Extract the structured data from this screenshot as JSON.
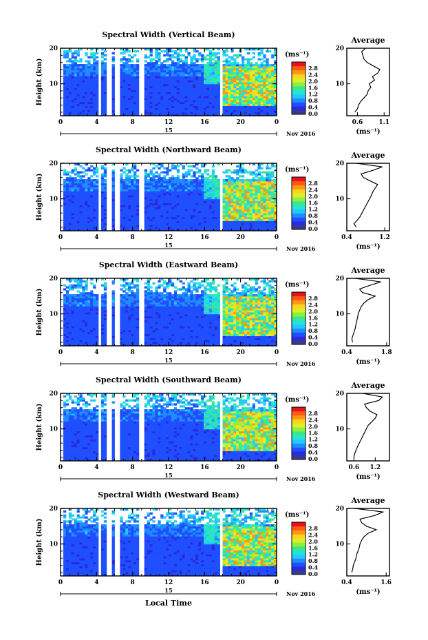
{
  "figure": {
    "xlabel": "Local Time",
    "date_label": "Nov 2016",
    "day_label": "15",
    "colorbar_unit": "(ms⁻¹)",
    "avg_title": "Average",
    "avg_xlabel": "(ms⁻¹)",
    "ylabel": "Height (km)",
    "colors": [
      "#3a3a8a",
      "#2a2ad8",
      "#1f4fff",
      "#1f8cff",
      "#22c8ff",
      "#22e6d2",
      "#3ce68c",
      "#8cf03c",
      "#dcf028",
      "#ffd21e",
      "#ff9616",
      "#ff5a10",
      "#e6141e"
    ]
  },
  "chart_data": [
    {
      "type": "heatmap",
      "title": "Spectral Width (Vertical Beam)",
      "xlabel": "Local Time",
      "ylabel": "Height (km)",
      "x_ticks": [
        "0",
        "4",
        "8",
        "12",
        "16",
        "20",
        "0"
      ],
      "y_ticks": [
        "20",
        "10"
      ],
      "xlim": [
        0,
        24
      ],
      "ylim": [
        1,
        20
      ],
      "colorbar": {
        "label": "(ms⁻¹)",
        "ticks": [
          "2.8",
          "2.4",
          "2.0",
          "1.6",
          "1.2",
          "0.8",
          "0.4",
          "0.0"
        ],
        "range": [
          0,
          3.0
        ]
      },
      "data_gaps_hours": [
        [
          4.1,
          4.5
        ],
        [
          5.2,
          5.6
        ],
        [
          6.1,
          6.5
        ],
        [
          8.8,
          9.2
        ],
        [
          17.6,
          18.1
        ]
      ],
      "average": {
        "title": "Average",
        "xlabel": "(ms⁻¹)",
        "x_ticks": [
          "0.6",
          "1.1"
        ],
        "xlim": [
          0.4,
          1.2
        ],
        "y_ticks": [
          "20",
          "10"
        ],
        "height": [
          2,
          3,
          4,
          5,
          6,
          7,
          8,
          9,
          10,
          11,
          12,
          13,
          14,
          15,
          16,
          17,
          18,
          19,
          20
        ],
        "value": [
          0.55,
          0.6,
          0.62,
          0.66,
          0.72,
          0.78,
          0.8,
          0.85,
          0.82,
          0.92,
          0.88,
          0.98,
          1.02,
          0.9,
          0.78,
          0.72,
          0.7,
          0.68,
          0.75
        ]
      }
    },
    {
      "type": "heatmap",
      "title": "Spectral Width (Northward Beam)",
      "xlabel": "Local Time",
      "ylabel": "Height (km)",
      "x_ticks": [
        "0",
        "4",
        "8",
        "12",
        "16",
        "20",
        "0"
      ],
      "y_ticks": [
        "20",
        "10"
      ],
      "xlim": [
        0,
        24
      ],
      "ylim": [
        1,
        20
      ],
      "colorbar": {
        "label": "(ms⁻¹)",
        "ticks": [
          "2.8",
          "2.4",
          "2.0",
          "1.6",
          "1.2",
          "0.8",
          "0.4",
          "0.0"
        ],
        "range": [
          0,
          3.0
        ]
      },
      "data_gaps_hours": [
        [
          4.1,
          4.5
        ],
        [
          5.2,
          5.6
        ],
        [
          6.1,
          6.5
        ],
        [
          8.8,
          9.2
        ],
        [
          17.6,
          18.1
        ]
      ],
      "average": {
        "title": "Average",
        "xlabel": "(ms⁻¹)",
        "x_ticks": [
          "0.4",
          "1.2"
        ],
        "xlim": [
          0.4,
          1.3
        ],
        "y_ticks": [
          "20",
          "10"
        ],
        "height": [
          2,
          3,
          4,
          5,
          6,
          7,
          8,
          9,
          10,
          11,
          12,
          13,
          14,
          15,
          16,
          17,
          18,
          19,
          20
        ],
        "value": [
          0.6,
          0.55,
          0.62,
          0.68,
          0.72,
          0.76,
          0.8,
          0.84,
          0.88,
          0.92,
          0.95,
          1.0,
          1.05,
          0.9,
          0.75,
          0.7,
          0.95,
          1.15,
          0.6
        ]
      }
    },
    {
      "type": "heatmap",
      "title": "Spectral Width (Eastward Beam)",
      "xlabel": "Local Time",
      "ylabel": "Height (km)",
      "x_ticks": [
        "0",
        "4",
        "8",
        "12",
        "16",
        "20",
        "0"
      ],
      "y_ticks": [
        "20",
        "10"
      ],
      "xlim": [
        0,
        24
      ],
      "ylim": [
        1,
        20
      ],
      "colorbar": {
        "label": "(ms⁻¹)",
        "ticks": [
          "2.8",
          "2.4",
          "2.0",
          "1.6",
          "1.2",
          "0.8",
          "0.4",
          "0.0"
        ],
        "range": [
          0,
          3.0
        ]
      },
      "data_gaps_hours": [
        [
          4.1,
          4.5
        ],
        [
          5.2,
          5.6
        ],
        [
          6.1,
          6.5
        ],
        [
          8.8,
          9.2
        ],
        [
          17.6,
          18.1
        ]
      ],
      "average": {
        "title": "Average",
        "xlabel": "(ms⁻¹)",
        "x_ticks": [
          "0.4",
          "1.8"
        ],
        "xlim": [
          0.4,
          1.9
        ],
        "y_ticks": [
          "20",
          "10"
        ],
        "height": [
          2,
          3,
          4,
          5,
          6,
          7,
          8,
          9,
          10,
          11,
          12,
          13,
          14,
          15,
          16,
          17,
          18,
          19,
          20
        ],
        "value": [
          0.6,
          0.58,
          0.62,
          0.66,
          0.7,
          0.72,
          0.75,
          0.78,
          0.8,
          0.85,
          0.9,
          1.0,
          1.15,
          1.4,
          0.95,
          0.85,
          1.2,
          1.6,
          0.7
        ]
      }
    },
    {
      "type": "heatmap",
      "title": "Spectral Width (Southward Beam)",
      "xlabel": "Local Time",
      "ylabel": "Height (km)",
      "x_ticks": [
        "0",
        "4",
        "8",
        "12",
        "16",
        "20",
        "0"
      ],
      "y_ticks": [
        "20",
        "10"
      ],
      "xlim": [
        0,
        24
      ],
      "ylim": [
        1,
        20
      ],
      "colorbar": {
        "label": "(ms⁻¹)",
        "ticks": [
          "2.8",
          "2.4",
          "2.0",
          "1.6",
          "1.2",
          "0.8",
          "0.4",
          "0.0"
        ],
        "range": [
          0,
          3.0
        ]
      },
      "data_gaps_hours": [
        [
          4.1,
          4.5
        ],
        [
          5.2,
          5.6
        ],
        [
          6.1,
          6.5
        ],
        [
          8.8,
          9.2
        ],
        [
          17.6,
          18.1
        ]
      ],
      "average": {
        "title": "Average",
        "xlabel": "(ms⁻¹)",
        "x_ticks": [
          "0.6",
          "1.2"
        ],
        "xlim": [
          0.4,
          1.6
        ],
        "y_ticks": [
          "20",
          "10"
        ],
        "height": [
          2,
          3,
          4,
          5,
          6,
          7,
          8,
          9,
          10,
          11,
          12,
          13,
          14,
          15,
          16,
          17,
          18,
          19,
          20
        ],
        "value": [
          0.6,
          0.62,
          0.66,
          0.7,
          0.75,
          0.8,
          0.85,
          0.9,
          0.95,
          1.0,
          1.1,
          1.2,
          1.25,
          1.05,
          0.95,
          0.9,
          1.3,
          1.4,
          0.85
        ]
      }
    },
    {
      "type": "heatmap",
      "title": "Spectral Width (Westward Beam)",
      "xlabel": "Local Time",
      "ylabel": "Height (km)",
      "x_ticks": [
        "0",
        "4",
        "8",
        "12",
        "16",
        "20",
        "0"
      ],
      "y_ticks": [
        "20",
        "10"
      ],
      "xlim": [
        0,
        24
      ],
      "ylim": [
        1,
        20
      ],
      "colorbar": {
        "label": "(ms⁻¹)",
        "ticks": [
          "2.8",
          "2.4",
          "2.0",
          "1.6",
          "1.2",
          "0.8",
          "0.4",
          "0.0"
        ],
        "range": [
          0,
          3.0
        ]
      },
      "data_gaps_hours": [
        [
          4.1,
          4.5
        ],
        [
          5.2,
          5.6
        ],
        [
          6.1,
          6.5
        ],
        [
          8.8,
          9.2
        ],
        [
          17.6,
          18.1
        ]
      ],
      "average": {
        "title": "Average",
        "xlabel": "(ms⁻¹)",
        "x_ticks": [
          "0.4",
          "1.6"
        ],
        "xlim": [
          0.4,
          1.7
        ],
        "y_ticks": [
          "20",
          "10"
        ],
        "height": [
          2,
          3,
          4,
          5,
          6,
          7,
          8,
          9,
          10,
          11,
          12,
          13,
          14,
          15,
          16,
          17,
          18,
          19,
          20
        ],
        "value": [
          0.55,
          0.58,
          0.6,
          0.64,
          0.68,
          0.7,
          0.74,
          0.78,
          0.8,
          0.85,
          0.92,
          1.05,
          1.3,
          1.0,
          0.85,
          0.8,
          1.25,
          1.5,
          0.65
        ]
      }
    }
  ]
}
